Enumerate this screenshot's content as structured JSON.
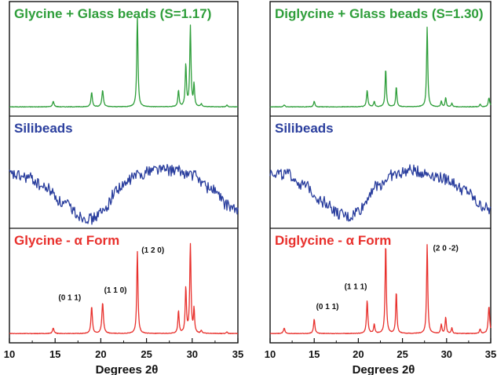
{
  "chart_data": [
    {
      "type": "line",
      "panel": "left",
      "xlabel": "Degrees 2θ",
      "xlim": [
        10,
        35
      ],
      "xticks": [
        10,
        15,
        20,
        25,
        30,
        35
      ],
      "tracks": [
        {
          "title": "Glycine + Glass beads (S=1.17)",
          "color": "#2e9e3a",
          "baseline": 0.05,
          "peaks": [
            [
              14.8,
              0.06,
              0.1
            ],
            [
              19.0,
              0.16,
              0.09
            ],
            [
              20.2,
              0.18,
              0.1
            ],
            [
              24.0,
              1.0,
              0.08
            ],
            [
              28.5,
              0.18,
              0.08
            ],
            [
              29.3,
              0.46,
              0.08
            ],
            [
              29.8,
              0.88,
              0.08
            ],
            [
              30.2,
              0.24,
              0.07
            ],
            [
              31.0,
              0.03,
              0.08
            ],
            [
              33.8,
              0.02,
              0.08
            ]
          ],
          "peak_labels": []
        },
        {
          "title": "Silibeads",
          "color": "#2b3f9e",
          "amorphous": true,
          "curve": [
            [
              10,
              0.55
            ],
            [
              12,
              0.52
            ],
            [
              14,
              0.4
            ],
            [
              16,
              0.22
            ],
            [
              18,
              0.08
            ],
            [
              19,
              0.05
            ],
            [
              20,
              0.12
            ],
            [
              22,
              0.4
            ],
            [
              24,
              0.55
            ],
            [
              26,
              0.62
            ],
            [
              28,
              0.6
            ],
            [
              30,
              0.55
            ],
            [
              32,
              0.4
            ],
            [
              34,
              0.2
            ],
            [
              35,
              0.14
            ]
          ]
        },
        {
          "title": "Glycine - α Form",
          "color": "#e8302c",
          "baseline": 0.05,
          "peaks": [
            [
              14.8,
              0.06,
              0.1
            ],
            [
              19.0,
              0.3,
              0.09
            ],
            [
              20.2,
              0.34,
              0.1
            ],
            [
              24.0,
              0.9,
              0.08
            ],
            [
              28.5,
              0.25,
              0.08
            ],
            [
              29.3,
              0.5,
              0.08
            ],
            [
              29.8,
              1.0,
              0.08
            ],
            [
              30.2,
              0.26,
              0.07
            ],
            [
              31.0,
              0.03,
              0.08
            ],
            [
              33.8,
              0.02,
              0.08
            ]
          ],
          "peak_labels": [
            {
              "text": "(0 1 1)",
              "x": 16.6,
              "y": 0.42
            },
            {
              "text": "(1 1 0)",
              "x": 21.6,
              "y": 0.5
            },
            {
              "text": "(1 2 0)",
              "x": 25.7,
              "y": 0.94
            }
          ]
        }
      ]
    },
    {
      "type": "line",
      "panel": "right",
      "xlabel": "Degrees 2θ",
      "xlim": [
        10,
        35
      ],
      "xticks": [
        10,
        15,
        20,
        25,
        30,
        35
      ],
      "tracks": [
        {
          "title": "Diglycine + Glass beads (S=1.30)",
          "color": "#2e9e3a",
          "baseline": 0.05,
          "peaks": [
            [
              11.6,
              0.02,
              0.1
            ],
            [
              15.0,
              0.06,
              0.09
            ],
            [
              21.0,
              0.18,
              0.09
            ],
            [
              21.8,
              0.06,
              0.08
            ],
            [
              23.1,
              0.42,
              0.08
            ],
            [
              24.3,
              0.22,
              0.08
            ],
            [
              27.8,
              0.88,
              0.08
            ],
            [
              29.4,
              0.06,
              0.08
            ],
            [
              29.9,
              0.1,
              0.08
            ],
            [
              30.6,
              0.04,
              0.08
            ],
            [
              33.8,
              0.03,
              0.08
            ],
            [
              34.8,
              0.1,
              0.1
            ]
          ],
          "peak_labels": []
        },
        {
          "title": "Silibeads",
          "color": "#2b3f9e",
          "amorphous": true,
          "curve": [
            [
              10,
              0.58
            ],
            [
              12,
              0.55
            ],
            [
              14,
              0.42
            ],
            [
              16,
              0.25
            ],
            [
              18,
              0.1
            ],
            [
              19,
              0.07
            ],
            [
              20,
              0.15
            ],
            [
              22,
              0.42
            ],
            [
              24,
              0.55
            ],
            [
              26,
              0.6
            ],
            [
              28,
              0.56
            ],
            [
              30,
              0.5
            ],
            [
              32,
              0.38
            ],
            [
              34,
              0.2
            ],
            [
              35,
              0.15
            ]
          ]
        },
        {
          "title": "Diglycine - α Form",
          "color": "#e8302c",
          "baseline": 0.05,
          "peaks": [
            [
              11.6,
              0.06,
              0.1
            ],
            [
              15.0,
              0.16,
              0.09
            ],
            [
              21.0,
              0.36,
              0.09
            ],
            [
              21.8,
              0.1,
              0.08
            ],
            [
              23.1,
              1.0,
              0.08
            ],
            [
              24.3,
              0.46,
              0.08
            ],
            [
              27.8,
              0.98,
              0.08
            ],
            [
              29.4,
              0.1,
              0.08
            ],
            [
              29.9,
              0.18,
              0.08
            ],
            [
              30.6,
              0.06,
              0.08
            ],
            [
              33.8,
              0.05,
              0.08
            ],
            [
              34.8,
              0.3,
              0.1
            ]
          ],
          "peak_labels": [
            {
              "text": "(0 1 1)",
              "x": 16.5,
              "y": 0.32
            },
            {
              "text": "(1 1 1)",
              "x": 19.7,
              "y": 0.54
            },
            {
              "text": "(2 0 -2)",
              "x": 29.9,
              "y": 0.96
            }
          ]
        }
      ]
    }
  ]
}
